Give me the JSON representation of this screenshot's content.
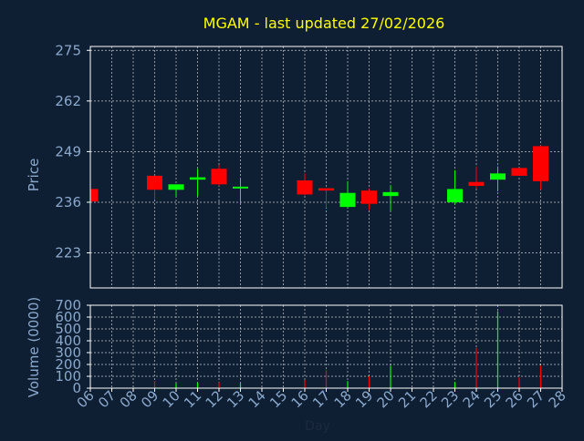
{
  "title": "MGAM - last updated 27/02/2026",
  "colors": {
    "background": "#0f1f33",
    "title": "#ffff00",
    "axis_text": "#8aa8cc",
    "frame": "#ffffff",
    "grid": "#ffffff",
    "up": "#00ff00",
    "down": "#ff0000"
  },
  "chart_data": [
    {
      "type": "candlestick",
      "ylabel": "Price",
      "ylim": [
        214,
        276
      ],
      "y_ticks": [
        275,
        262,
        249,
        236,
        223
      ],
      "grid": true,
      "candles": [
        {
          "day": "06",
          "open": 239.4,
          "high": 239.4,
          "low": 236.2,
          "close": 236.2
        },
        {
          "day": "09",
          "open": 242.8,
          "high": 242.8,
          "low": 236.8,
          "close": 239.2
        },
        {
          "day": "10",
          "open": 239.2,
          "high": 240.6,
          "low": 237.4,
          "close": 240.6
        },
        {
          "day": "11",
          "open": 241.8,
          "high": 244.6,
          "low": 237.6,
          "close": 242.4
        },
        {
          "day": "12",
          "open": 244.6,
          "high": 245.6,
          "low": 240.2,
          "close": 240.6
        },
        {
          "day": "13",
          "open": 239.6,
          "high": 242.0,
          "low": 235.6,
          "close": 240.0
        },
        {
          "day": "16",
          "open": 241.6,
          "high": 243.4,
          "low": 237.8,
          "close": 238.0
        },
        {
          "day": "17",
          "open": 239.6,
          "high": 239.6,
          "low": 234.6,
          "close": 239.0
        },
        {
          "day": "18",
          "open": 234.8,
          "high": 241.4,
          "low": 234.6,
          "close": 238.4
        },
        {
          "day": "19",
          "open": 239.0,
          "high": 239.4,
          "low": 234.0,
          "close": 235.6
        },
        {
          "day": "20",
          "open": 237.6,
          "high": 240.4,
          "low": 233.8,
          "close": 238.6
        },
        {
          "day": "23",
          "open": 236.0,
          "high": 244.2,
          "low": 235.4,
          "close": 239.4
        },
        {
          "day": "24",
          "open": 241.2,
          "high": 245.2,
          "low": 239.4,
          "close": 240.2
        },
        {
          "day": "25",
          "open": 241.8,
          "high": 245.2,
          "low": 238.8,
          "close": 243.4
        },
        {
          "day": "26",
          "open": 244.8,
          "high": 244.8,
          "low": 242.8,
          "close": 242.8
        },
        {
          "day": "27",
          "open": 250.4,
          "high": 250.6,
          "low": 239.2,
          "close": 241.4
        }
      ]
    },
    {
      "type": "bar",
      "ylabel": "Volume (0000)",
      "ylim": [
        0,
        700
      ],
      "y_ticks": [
        700,
        600,
        500,
        400,
        300,
        200,
        100,
        0
      ],
      "xlabel": "Day",
      "categories": [
        "06",
        "07",
        "08",
        "09",
        "10",
        "11",
        "12",
        "13",
        "14",
        "15",
        "16",
        "17",
        "18",
        "19",
        "20",
        "21",
        "22",
        "23",
        "24",
        "25",
        "26",
        "27",
        "28"
      ],
      "volumes": [
        {
          "day": "06",
          "value": 20,
          "direction": "down"
        },
        {
          "day": "09",
          "value": 60,
          "direction": "down"
        },
        {
          "day": "10",
          "value": 40,
          "direction": "up"
        },
        {
          "day": "11",
          "value": 45,
          "direction": "up"
        },
        {
          "day": "12",
          "value": 50,
          "direction": "down"
        },
        {
          "day": "13",
          "value": 40,
          "direction": "up"
        },
        {
          "day": "16",
          "value": 70,
          "direction": "down"
        },
        {
          "day": "17",
          "value": 150,
          "direction": "down"
        },
        {
          "day": "18",
          "value": 60,
          "direction": "up"
        },
        {
          "day": "19",
          "value": 100,
          "direction": "down"
        },
        {
          "day": "20",
          "value": 190,
          "direction": "up"
        },
        {
          "day": "23",
          "value": 50,
          "direction": "up"
        },
        {
          "day": "24",
          "value": 340,
          "direction": "down"
        },
        {
          "day": "25",
          "value": 650,
          "direction": "up"
        },
        {
          "day": "26",
          "value": 90,
          "direction": "down"
        },
        {
          "day": "27",
          "value": 190,
          "direction": "down"
        }
      ]
    }
  ]
}
